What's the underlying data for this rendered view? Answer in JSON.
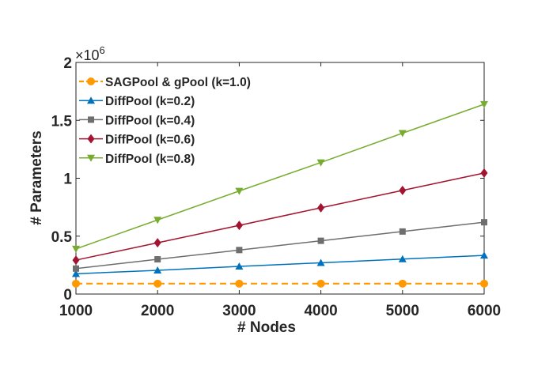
{
  "chart_data": {
    "type": "line",
    "xlabel": "# Nodes",
    "ylabel": "# Parameters",
    "y_exponent_label": "×10",
    "y_exponent_power": "6",
    "x": [
      1000,
      2000,
      3000,
      4000,
      5000,
      6000
    ],
    "xlim": [
      1000,
      6000
    ],
    "ylim": [
      0,
      2000000
    ],
    "xticks": [
      "1000",
      "2000",
      "3000",
      "4000",
      "5000",
      "6000"
    ],
    "yticks": [
      {
        "v": 0,
        "label": "0"
      },
      {
        "v": 500000,
        "label": "0.5"
      },
      {
        "v": 1000000,
        "label": "1"
      },
      {
        "v": 1500000,
        "label": "1.5"
      },
      {
        "v": 2000000,
        "label": "2"
      }
    ],
    "grid": false,
    "legend_position": "top-left",
    "series": [
      {
        "name": "SAGPool & gPool (k=1.0)",
        "color": "#FF9900",
        "marker": "circle",
        "dashed": true,
        "values": [
          90000,
          90000,
          90000,
          90000,
          90000,
          90000
        ]
      },
      {
        "name": "DiffPool (k=0.2)",
        "color": "#0072BD",
        "marker": "triangle-up",
        "dashed": false,
        "values": [
          175000,
          205000,
          239000,
          270000,
          302000,
          334000
        ]
      },
      {
        "name": "DiffPool (k=0.4)",
        "color": "#6E6E6E",
        "marker": "square",
        "dashed": false,
        "values": [
          220000,
          300000,
          380000,
          460000,
          540000,
          620000
        ]
      },
      {
        "name": "DiffPool (k=0.6)",
        "color": "#A2142F",
        "marker": "diamond",
        "dashed": false,
        "values": [
          293000,
          443000,
          593000,
          745000,
          895000,
          1045000
        ]
      },
      {
        "name": "DiffPool (k=0.8)",
        "color": "#77AC30",
        "marker": "triangle-down",
        "dashed": false,
        "values": [
          390000,
          640000,
          890000,
          1136000,
          1389000,
          1639000
        ]
      }
    ]
  }
}
